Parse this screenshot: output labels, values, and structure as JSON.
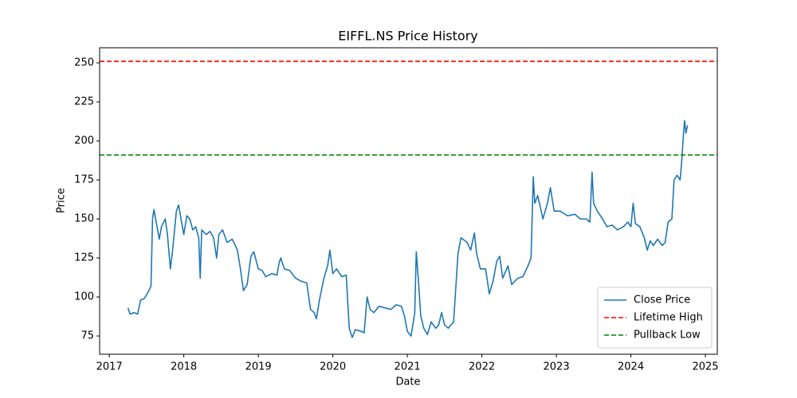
{
  "chart_data": {
    "type": "line",
    "title": "EIFFL.NS Price History",
    "x_label": "Date",
    "y_label": "Price",
    "x": [
      2017.25,
      2017.28,
      2017.33,
      2017.38,
      2017.42,
      2017.47,
      2017.52,
      2017.56,
      2017.58,
      2017.6,
      2017.63,
      2017.67,
      2017.7,
      2017.75,
      2017.78,
      2017.82,
      2017.85,
      2017.9,
      2017.93,
      2017.97,
      2018.0,
      2018.04,
      2018.08,
      2018.12,
      2018.16,
      2018.2,
      2018.22,
      2018.24,
      2018.3,
      2018.35,
      2018.4,
      2018.44,
      2018.47,
      2018.52,
      2018.58,
      2018.65,
      2018.72,
      2018.76,
      2018.8,
      2018.85,
      2018.9,
      2018.94,
      2019.0,
      2019.05,
      2019.1,
      2019.18,
      2019.25,
      2019.28,
      2019.3,
      2019.35,
      2019.42,
      2019.5,
      2019.58,
      2019.65,
      2019.7,
      2019.75,
      2019.78,
      2019.82,
      2019.88,
      2019.93,
      2019.96,
      2020.0,
      2020.05,
      2020.12,
      2020.18,
      2020.2,
      2020.22,
      2020.26,
      2020.3,
      2020.38,
      2020.42,
      2020.46,
      2020.5,
      2020.55,
      2020.62,
      2020.7,
      2020.78,
      2020.85,
      2020.92,
      2020.96,
      2021.0,
      2021.05,
      2021.1,
      2021.12,
      2021.15,
      2021.18,
      2021.22,
      2021.27,
      2021.32,
      2021.38,
      2021.42,
      2021.46,
      2021.5,
      2021.55,
      2021.62,
      2021.68,
      2021.72,
      2021.8,
      2021.85,
      2021.9,
      2021.93,
      2021.98,
      2022.05,
      2022.1,
      2022.15,
      2022.2,
      2022.24,
      2022.28,
      2022.35,
      2022.4,
      2022.48,
      2022.55,
      2022.62,
      2022.66,
      2022.69,
      2022.71,
      2022.75,
      2022.82,
      2022.88,
      2022.92,
      2022.97,
      2023.05,
      2023.15,
      2023.25,
      2023.32,
      2023.4,
      2023.45,
      2023.48,
      2023.5,
      2023.55,
      2023.62,
      2023.68,
      2023.75,
      2023.82,
      2023.9,
      2023.96,
      2024.0,
      2024.03,
      2024.06,
      2024.12,
      2024.18,
      2024.22,
      2024.26,
      2024.3,
      2024.36,
      2024.42,
      2024.46,
      2024.5,
      2024.55,
      2024.58,
      2024.62,
      2024.66,
      2024.68,
      2024.7,
      2024.72,
      2024.74,
      2024.76
    ],
    "series": [
      {
        "name": "Close Price",
        "color": "#1f77b4",
        "values": [
          93,
          89,
          90,
          89,
          98,
          99,
          103,
          107,
          150,
          156,
          148,
          137,
          145,
          150,
          140,
          118,
          130,
          155,
          159,
          148,
          140,
          152,
          150,
          143,
          145,
          138,
          112,
          143,
          140,
          142,
          138,
          125,
          140,
          143,
          135,
          137,
          130,
          118,
          104,
          108,
          126,
          129,
          118,
          117,
          113,
          115,
          114,
          122,
          125,
          118,
          117,
          112,
          110,
          109,
          92,
          90,
          86,
          98,
          112,
          120,
          130,
          115,
          118,
          113,
          114,
          97,
          80,
          74,
          79,
          78,
          77,
          100,
          92,
          90,
          94,
          93,
          92,
          95,
          94,
          88,
          78,
          75,
          90,
          129,
          110,
          88,
          80,
          76,
          84,
          80,
          82,
          90,
          82,
          80,
          84,
          128,
          138,
          135,
          130,
          141,
          128,
          118,
          118,
          102,
          110,
          123,
          126,
          112,
          120,
          108,
          112,
          113,
          120,
          125,
          177,
          160,
          165,
          150,
          160,
          170,
          155,
          155,
          152,
          153,
          150,
          150,
          148,
          180,
          160,
          155,
          150,
          145,
          146,
          143,
          145,
          148,
          145,
          160,
          147,
          145,
          138,
          130,
          136,
          133,
          137,
          133,
          135,
          148,
          150,
          175,
          178,
          175,
          185,
          200,
          213,
          205,
          210
        ]
      }
    ],
    "hlines": [
      {
        "name": "Lifetime High",
        "value": 251,
        "color": "#ff0000"
      },
      {
        "name": "Pullback Low",
        "value": 191,
        "color": "#008000"
      }
    ],
    "xlim": [
      2016.87,
      2025.16
    ],
    "xticks": [
      2017,
      2018,
      2019,
      2020,
      2021,
      2022,
      2023,
      2024,
      2025
    ],
    "ylim": [
      63.3,
      259.7
    ],
    "yticks": [
      75,
      100,
      125,
      150,
      175,
      200,
      225,
      250
    ],
    "legend": "lower right"
  }
}
